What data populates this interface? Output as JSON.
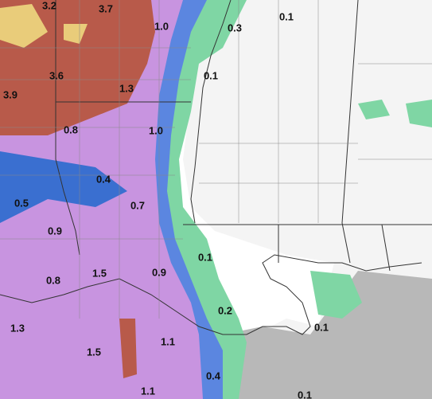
{
  "labels": [
    "3.2",
    "3.7",
    "1.0",
    "0.3",
    "0.1",
    "3.6",
    "0.1",
    "1.3",
    "3.9",
    "0.8",
    "1.0",
    "0.4",
    "0.5",
    "0.7",
    "0.9",
    "0.1",
    "1.5",
    "0.9",
    "0.8",
    "0.2",
    "1.3",
    "0.1",
    "1.5",
    "1.1",
    "0.4",
    "1.1",
    "0.1"
  ]
}
